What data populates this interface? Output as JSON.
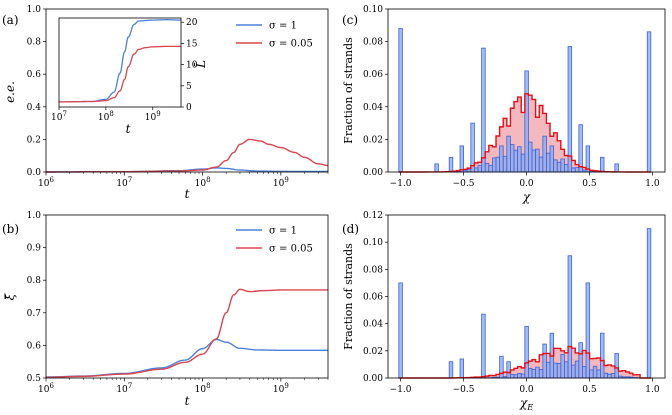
{
  "colors": {
    "sigma1": "#4a82d6",
    "sigma005": "#d8464f",
    "hist_blue_fill": "#8eaaf0",
    "hist_blue_edge": "#3a63d8",
    "hist_red_fill": "#f0a0aa",
    "hist_red_edge": "#e01018"
  },
  "chart_data": [
    {
      "panel_label": "(a)",
      "type": "line",
      "xscale": "log",
      "xlim": [
        1000000,
        4000000000
      ],
      "ylim": [
        0,
        1
      ],
      "xlabel": "t",
      "ylabel": "e.e.",
      "x_ticks": [
        {
          "value": 1000000,
          "base": "10",
          "exp": "6"
        },
        {
          "value": 10000000,
          "base": "10",
          "exp": "7"
        },
        {
          "value": 100000000,
          "base": "10",
          "exp": "8"
        },
        {
          "value": 1000000000,
          "base": "10",
          "exp": "9"
        }
      ],
      "y_ticks": [
        "0.0",
        "0.2",
        "0.4",
        "0.6",
        "0.8",
        "1.0"
      ],
      "y_tick_values": [
        0,
        0.2,
        0.4,
        0.6,
        0.8,
        1.0
      ],
      "legend": {
        "position": "top-right",
        "entries": [
          "σ = 1",
          "σ = 0.05"
        ]
      },
      "series": [
        {
          "name": "σ = 1",
          "color_key": "sigma1",
          "x": [
            1000000,
            10000000,
            50000000,
            100000000,
            150000000,
            200000000,
            300000000,
            500000000,
            1000000000,
            2000000000,
            4000000000
          ],
          "y": [
            0.0,
            0.002,
            0.008,
            0.018,
            0.025,
            0.022,
            0.012,
            0.006,
            0.004,
            0.003,
            0.003
          ]
        },
        {
          "name": "σ = 0.05",
          "color_key": "sigma005",
          "x": [
            1000000,
            10000000,
            50000000,
            100000000,
            150000000,
            200000000,
            250000000,
            300000000,
            400000000,
            550000000,
            700000000,
            1000000000,
            1500000000,
            2000000000,
            3000000000,
            4000000000
          ],
          "y": [
            0.0,
            0.002,
            0.006,
            0.012,
            0.03,
            0.07,
            0.12,
            0.17,
            0.2,
            0.19,
            0.17,
            0.15,
            0.12,
            0.09,
            0.05,
            0.04
          ]
        }
      ],
      "inset": {
        "xscale": "log",
        "xlim": [
          10000000,
          4000000000
        ],
        "ylim": [
          0,
          21
        ],
        "xlabel": "t",
        "ylabel": "L̄",
        "x_ticks": [
          {
            "value": 10000000,
            "base": "10",
            "exp": "7"
          },
          {
            "value": 100000000,
            "base": "10",
            "exp": "8"
          },
          {
            "value": 1000000000,
            "base": "10",
            "exp": "9"
          }
        ],
        "y_ticks": [
          "0",
          "5",
          "10",
          "15",
          "20"
        ],
        "y_tick_values": [
          0,
          5,
          10,
          15,
          20
        ],
        "series": [
          {
            "name": "σ = 1",
            "color_key": "sigma1",
            "x": [
              10000000,
              50000000,
              100000000,
              150000000,
              200000000,
              250000000,
              300000000,
              400000000,
              500000000,
              1000000000,
              2000000000,
              4000000000
            ],
            "y": [
              1.2,
              1.3,
              1.8,
              3.5,
              8.0,
              13.0,
              16.5,
              19.5,
              20.3,
              20.5,
              20.6,
              20.5
            ]
          },
          {
            "name": "σ = 0.05",
            "color_key": "sigma005",
            "x": [
              10000000,
              50000000,
              100000000,
              150000000,
              200000000,
              250000000,
              300000000,
              400000000,
              500000000,
              700000000,
              1000000000,
              2000000000,
              4000000000
            ],
            "y": [
              1.2,
              1.3,
              1.5,
              2.2,
              3.8,
              6.5,
              9.5,
              12.5,
              13.6,
              14.0,
              14.2,
              14.3,
              14.3
            ]
          }
        ]
      }
    },
    {
      "panel_label": "(b)",
      "type": "line",
      "xscale": "log",
      "xlim": [
        1000000,
        4000000000
      ],
      "ylim": [
        0.5,
        1
      ],
      "xlabel": "t",
      "ylabel": "ξ̄",
      "x_ticks": [
        {
          "value": 1000000,
          "base": "10",
          "exp": "6"
        },
        {
          "value": 10000000,
          "base": "10",
          "exp": "7"
        },
        {
          "value": 100000000,
          "base": "10",
          "exp": "8"
        },
        {
          "value": 1000000000,
          "base": "10",
          "exp": "9"
        }
      ],
      "y_ticks": [
        "0.5",
        "0.6",
        "0.7",
        "0.8",
        "0.9",
        "1.0"
      ],
      "y_tick_values": [
        0.5,
        0.6,
        0.7,
        0.8,
        0.9,
        1.0
      ],
      "legend": {
        "position": "top-right",
        "entries": [
          "σ = 1",
          "σ = 0.05"
        ]
      },
      "series": [
        {
          "name": "σ = 1",
          "color_key": "sigma1",
          "x": [
            1000000,
            3000000,
            10000000,
            30000000,
            60000000,
            100000000,
            150000000,
            200000000,
            300000000,
            500000000,
            1000000000,
            4000000000
          ],
          "y": [
            0.503,
            0.506,
            0.514,
            0.531,
            0.555,
            0.59,
            0.618,
            0.61,
            0.591,
            0.586,
            0.585,
            0.585
          ]
        },
        {
          "name": "σ = 0.05",
          "color_key": "sigma005",
          "x": [
            1000000,
            3000000,
            10000000,
            30000000,
            60000000,
            100000000,
            150000000,
            200000000,
            250000000,
            300000000,
            400000000,
            600000000,
            1000000000,
            4000000000
          ],
          "y": [
            0.502,
            0.505,
            0.512,
            0.527,
            0.548,
            0.573,
            0.62,
            0.7,
            0.755,
            0.772,
            0.765,
            0.768,
            0.77,
            0.77
          ]
        }
      ]
    },
    {
      "panel_label": "(c)",
      "type": "bar",
      "xlim": [
        -1.1,
        1.1
      ],
      "ylim": [
        0,
        0.1
      ],
      "xlabel": "χ",
      "ylabel": "Fraction of strands",
      "x_ticks": [
        "−1.0",
        "−0.5",
        "0.0",
        "0.5",
        "1.0"
      ],
      "x_tick_values": [
        -1,
        -0.5,
        0,
        0.5,
        1
      ],
      "y_ticks": [
        "0.00",
        "0.02",
        "0.04",
        "0.06",
        "0.08",
        "0.10"
      ],
      "y_tick_values": [
        0,
        0.02,
        0.04,
        0.06,
        0.08,
        0.1
      ],
      "series": [
        {
          "name": "σ = 1",
          "style": "blue_hist",
          "spikes": [
            [
              -1.0,
              0.088
            ],
            [
              -0.333,
              0.076
            ],
            [
              0.0,
              0.062
            ],
            [
              0.333,
              0.077
            ],
            [
              1.0,
              0.086
            ],
            [
              -0.6,
              0.009
            ],
            [
              -0.5,
              0.016
            ],
            [
              -0.43,
              0.03
            ],
            [
              -0.2,
              0.016
            ],
            [
              -0.143,
              0.022
            ],
            [
              0.143,
              0.022
            ],
            [
              0.2,
              0.016
            ],
            [
              0.43,
              0.029
            ],
            [
              0.5,
              0.016
            ],
            [
              0.6,
              0.009
            ],
            [
              -0.71,
              0.005
            ],
            [
              0.71,
              0.005
            ]
          ],
          "base": {
            "center": 0,
            "peak": 0.015,
            "width": 0.3
          }
        },
        {
          "name": "σ = 0.05",
          "style": "red_hist",
          "base": {
            "center": 0,
            "peak": 0.045,
            "width": 0.27
          },
          "range": [
            -0.78,
            0.78
          ]
        }
      ]
    },
    {
      "panel_label": "(d)",
      "type": "bar",
      "xlim": [
        -1.1,
        1.1
      ],
      "ylim": [
        0,
        0.12
      ],
      "xlabel": "χ_E",
      "ylabel": "Fraction of strands",
      "x_ticks": [
        "−1.0",
        "−0.5",
        "0.0",
        "0.5",
        "1.0"
      ],
      "x_tick_values": [
        -1,
        -0.5,
        0,
        0.5,
        1
      ],
      "y_ticks": [
        "0.00",
        "0.02",
        "0.04",
        "0.06",
        "0.08",
        "0.10",
        "0.12"
      ],
      "y_tick_values": [
        0,
        0.02,
        0.04,
        0.06,
        0.08,
        0.1,
        0.12
      ],
      "series": [
        {
          "name": "σ = 1",
          "style": "blue_hist",
          "spikes": [
            [
              -1.0,
              0.07
            ],
            [
              -0.333,
              0.047
            ],
            [
              0.0,
              0.038
            ],
            [
              0.333,
              0.09
            ],
            [
              0.5,
              0.07
            ],
            [
              1.0,
              0.11
            ],
            [
              -0.5,
              0.014
            ],
            [
              -0.6,
              0.012
            ],
            [
              -0.2,
              0.016
            ],
            [
              0.2,
              0.033
            ],
            [
              0.6,
              0.033
            ],
            [
              0.143,
              0.025
            ],
            [
              0.43,
              0.026
            ],
            [
              0.71,
              0.018
            ],
            [
              -0.143,
              0.012
            ]
          ],
          "base": {
            "center": 0.3,
            "peak": 0.013,
            "width": 0.3
          }
        },
        {
          "name": "σ = 0.05",
          "style": "red_hist",
          "base": {
            "center": 0.32,
            "peak": 0.021,
            "width": 0.38
          },
          "range": [
            -0.58,
            0.9
          ]
        }
      ]
    }
  ]
}
